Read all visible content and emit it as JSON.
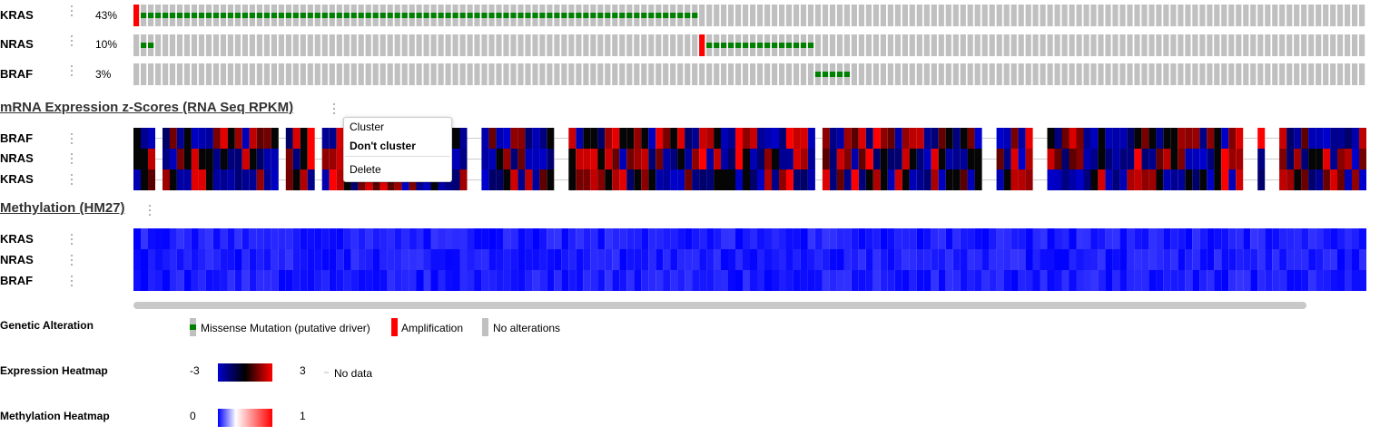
{
  "genetic_tracks": [
    {
      "gene": "KRAS",
      "percent": "43%"
    },
    {
      "gene": "NRAS",
      "percent": "10%"
    },
    {
      "gene": "BRAF",
      "percent": "3%"
    }
  ],
  "mrna_section": {
    "title": "mRNA Expression z-Scores (RNA Seq RPKM)",
    "genes": [
      "BRAF",
      "NRAS",
      "KRAS"
    ]
  },
  "context_menu": {
    "items": [
      "Cluster",
      "Don't cluster",
      "Delete"
    ]
  },
  "methylation_section": {
    "title": "Methylation (HM27)",
    "genes": [
      "KRAS",
      "NRAS",
      "BRAF"
    ]
  },
  "legend": {
    "genetic_alteration": {
      "title": "Genetic Alteration",
      "items": [
        "Missense Mutation (putative driver)",
        "Amplification",
        "No alterations"
      ]
    },
    "expression_heatmap": {
      "title": "Expression Heatmap",
      "min": "-3",
      "max": "3",
      "no_data": "No data"
    },
    "methylation_heatmap": {
      "title": "Methylation Heatmap",
      "min": "0",
      "max": "1"
    }
  },
  "colors": {
    "no_alteration": "#c0c0c0",
    "missense": "#008000",
    "amplification": "#ff0000",
    "exp_low": "#0000cc",
    "exp_mid": "#000000",
    "exp_high": "#ff0000",
    "meth_low": "#0000ff",
    "meth_high": "#ff0000"
  }
}
